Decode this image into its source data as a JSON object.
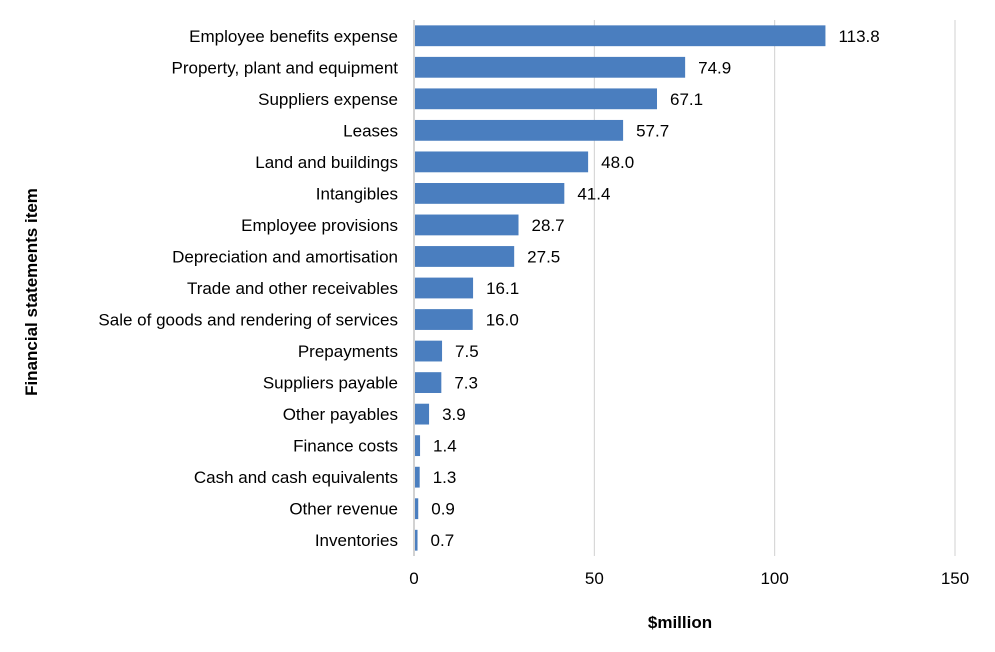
{
  "chart_data": {
    "type": "bar",
    "orientation": "horizontal",
    "categories": [
      "Employee benefits expense",
      "Property, plant and equipment",
      "Suppliers expense",
      "Leases",
      "Land and buildings",
      "Intangibles",
      "Employee provisions",
      "Depreciation and amortisation",
      "Trade and other receivables",
      "Sale of goods and rendering of services",
      "Prepayments",
      "Suppliers payable",
      "Other payables",
      "Finance costs",
      "Cash and cash equivalents",
      "Other revenue",
      "Inventories"
    ],
    "values": [
      113.8,
      74.9,
      67.1,
      57.7,
      48.0,
      41.4,
      28.7,
      27.5,
      16.1,
      16.0,
      7.5,
      7.3,
      3.9,
      1.4,
      1.3,
      0.9,
      0.7
    ],
    "value_labels": [
      "113.8",
      "74.9",
      "67.1",
      "57.7",
      "48.0",
      "41.4",
      "28.7",
      "27.5",
      "16.1",
      "16.0",
      "7.5",
      "7.3",
      "3.9",
      "1.4",
      "1.3",
      "0.9",
      "0.7"
    ],
    "title": "",
    "xlabel": "$million",
    "ylabel": "Financial statements item",
    "xlim": [
      0,
      150
    ],
    "xticks": [
      0,
      50,
      100,
      150
    ],
    "xtick_labels": [
      "0",
      "50",
      "100",
      "150"
    ],
    "grid": "vertical",
    "legend": "none",
    "colors": {
      "bar": "#4a7ebf",
      "grid": "#d0d0d0",
      "axis": "#a6a6a6"
    }
  }
}
